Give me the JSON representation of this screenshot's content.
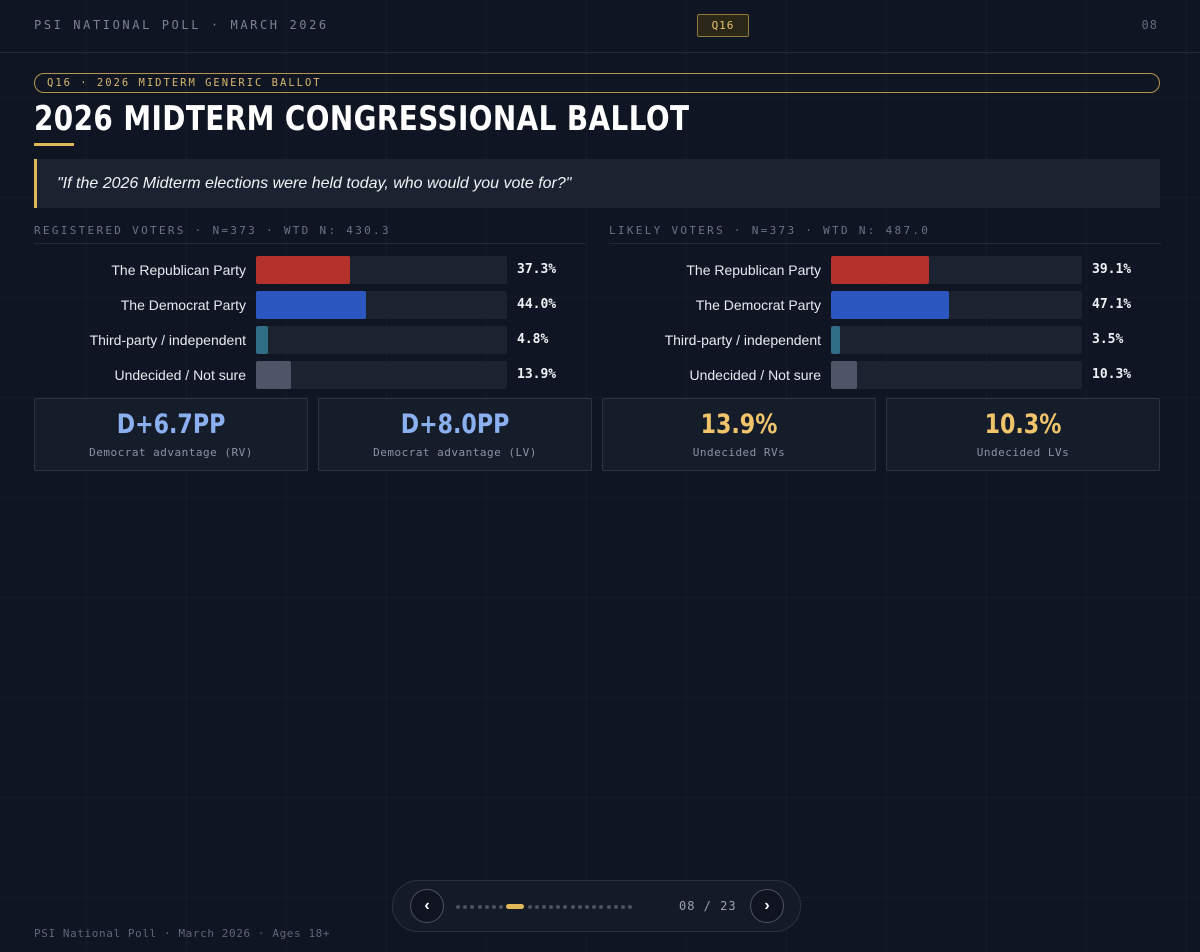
{
  "header": {
    "brand": "PSI NATIONAL POLL · MARCH 2026",
    "question_badge": "Q16",
    "page": "08"
  },
  "section": {
    "tag": "Q16 · 2026 MIDTERM GENERIC BALLOT",
    "title": "2026 MIDTERM CONGRESSIONAL BALLOT",
    "question": "\"If the 2026 Midterm elections were held today, who would you vote for?\""
  },
  "chart_data": [
    {
      "type": "bar",
      "title": "REGISTERED VOTERS · N=373 · WTD N: 430.3",
      "categories": [
        "The Republican Party",
        "The Democrat Party",
        "Third-party / independent",
        "Undecided / Not sure"
      ],
      "values": [
        37.3,
        44.0,
        4.8,
        13.9
      ],
      "value_labels": [
        "37.3%",
        "44.0%",
        "4.8%",
        "13.9%"
      ],
      "colors": [
        "#b5322c",
        "#2c57c0",
        "#2f6e86",
        "#4d5566"
      ],
      "xlim": [
        0,
        100
      ]
    },
    {
      "type": "bar",
      "title": "LIKELY VOTERS · N=373 · WTD N: 487.0",
      "categories": [
        "The Republican Party",
        "The Democrat Party",
        "Third-party / independent",
        "Undecided / Not sure"
      ],
      "values": [
        39.1,
        47.1,
        3.5,
        10.3
      ],
      "value_labels": [
        "39.1%",
        "47.1%",
        "3.5%",
        "10.3%"
      ],
      "colors": [
        "#b5322c",
        "#2c57c0",
        "#2f6e86",
        "#4d5566"
      ],
      "xlim": [
        0,
        100
      ]
    }
  ],
  "stats": [
    {
      "value": "D+6.7PP",
      "caption": "Democrat advantage (RV)",
      "color": "#8ab0f0"
    },
    {
      "value": "D+8.0PP",
      "caption": "Democrat advantage (LV)",
      "color": "#8ab0f0"
    },
    {
      "value": "13.9%",
      "caption": "Undecided RVs",
      "color": "#f0c46a"
    },
    {
      "value": "10.3%",
      "caption": "Undecided LVs",
      "color": "#f0c46a"
    }
  ],
  "pager": {
    "prev_icon": "‹",
    "next_icon": "›",
    "count": "08 / 23",
    "total": 23,
    "current": 8
  },
  "footer": "PSI National Poll · March 2026 · Ages 18+"
}
